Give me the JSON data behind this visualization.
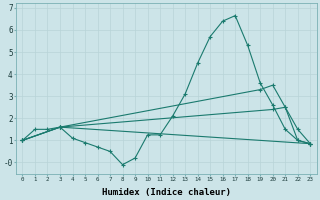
{
  "xlabel": "Humidex (Indice chaleur)",
  "bg_color": "#cce4e8",
  "grid_color": "#b8d4d8",
  "line_color": "#1a7a6e",
  "xlim": [
    -0.5,
    23.5
  ],
  "ylim": [
    -0.5,
    7.2
  ],
  "series": [
    {
      "x": [
        0,
        1,
        2,
        3,
        4,
        5,
        6,
        7,
        8,
        9,
        10,
        11,
        12,
        13,
        14,
        15,
        16,
        17,
        18,
        19,
        20,
        21,
        22,
        23
      ],
      "y": [
        1.0,
        1.5,
        1.5,
        1.6,
        1.1,
        0.9,
        0.7,
        0.5,
        -0.1,
        0.2,
        1.25,
        1.25,
        2.1,
        3.1,
        4.5,
        5.7,
        6.4,
        6.65,
        5.3,
        3.6,
        2.6,
        1.5,
        1.0,
        0.85
      ]
    },
    {
      "x": [
        0,
        3,
        23
      ],
      "y": [
        1.0,
        1.6,
        0.85
      ]
    },
    {
      "x": [
        0,
        3,
        20,
        21,
        22,
        23
      ],
      "y": [
        1.0,
        1.6,
        2.4,
        2.5,
        1.0,
        0.85
      ]
    },
    {
      "x": [
        0,
        3,
        19,
        20,
        21,
        22,
        23
      ],
      "y": [
        1.0,
        1.6,
        3.3,
        3.5,
        2.5,
        1.5,
        0.85
      ]
    }
  ]
}
